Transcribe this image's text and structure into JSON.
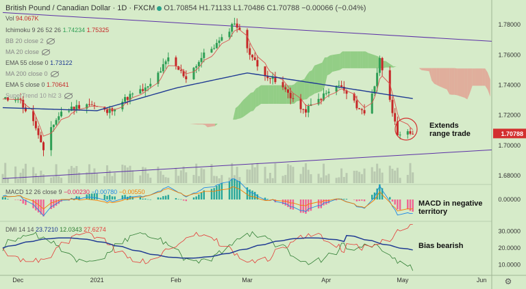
{
  "header": {
    "symbol": "British Pound / Canadian Dollar · 1D · FXCM",
    "ohlc": "O1.70854 H1.71133 L1.70486 C1.70788 −0.00066 (−0.04%)",
    "vol_label": "Vol",
    "vol_value": "94.067K",
    "ichimoku_label": "Ichimoku 9 26 52 26",
    "ichimoku_v1": "1.74234",
    "ichimoku_v2": "1.75325",
    "bb_label": "BB 20 close 2",
    "ma20_label": "MA 20 close",
    "ema55_label": "EMA 55 close 0",
    "ema55_value": "1.73122",
    "ma200_label": "MA 200 close 0",
    "ema5_label": "EMA 5 close 0",
    "ema5_value": "1.70641",
    "supertrend_label": "SuperTrend 10 hl2 3"
  },
  "colors": {
    "background": "#d6ebc9",
    "bull": "#2f9e55",
    "bear": "#c62828",
    "ema55": "#1f3a93",
    "ema5": "#d9534f",
    "cloud_bull": "#7cc46f",
    "cloud_bear": "#e39a8c",
    "trendline": "#5a2ea6"
  },
  "price_panel": {
    "y_ticks": [
      "1.78000",
      "1.76000",
      "1.74000",
      "1.72000",
      "1.70000",
      "1.68000"
    ],
    "current_price": "1.70788",
    "annotation_line1": "Extends",
    "annotation_line2": "range trade"
  },
  "macd_panel": {
    "label": "MACD 12 26 close 9",
    "v1": "−0.00230",
    "v2": "−0.00780",
    "v3": "−0.00550",
    "y_tick": "0.00000",
    "annotation_line1": "MACD in negative",
    "annotation_line2": "territory"
  },
  "dmi_panel": {
    "label": "DMI 14 14",
    "v1": "23.7210",
    "v2": "12.0343",
    "v3": "27.6274",
    "y_ticks": [
      "30.0000",
      "20.0000",
      "10.0000"
    ],
    "annotation": "Bias bearish"
  },
  "x_axis": {
    "labels": [
      "Dec",
      "2021",
      "Feb",
      "Mar",
      "Apr",
      "May",
      "Jun"
    ]
  },
  "chart_data": [
    {
      "type": "candlestick",
      "x_range": [
        "2020-11-25",
        "2021-05-05"
      ],
      "ylim": [
        1.675,
        1.79
      ],
      "y_ticks": [
        1.78,
        1.76,
        1.74,
        1.72,
        1.7,
        1.68
      ],
      "close_path": [
        {
          "date": "2020-11-25",
          "value": 1.73
        },
        {
          "date": "2020-12-01",
          "value": 1.732
        },
        {
          "date": "2020-12-08",
          "value": 1.712
        },
        {
          "date": "2020-12-11",
          "value": 1.695
        },
        {
          "date": "2020-12-14",
          "value": 1.712
        },
        {
          "date": "2020-12-18",
          "value": 1.722
        },
        {
          "date": "2020-12-28",
          "value": 1.728
        },
        {
          "date": "2021-01-05",
          "value": 1.722
        },
        {
          "date": "2021-01-14",
          "value": 1.733
        },
        {
          "date": "2021-01-21",
          "value": 1.738
        },
        {
          "date": "2021-01-29",
          "value": 1.757
        },
        {
          "date": "2021-02-05",
          "value": 1.745
        },
        {
          "date": "2021-02-12",
          "value": 1.76
        },
        {
          "date": "2021-02-19",
          "value": 1.77
        },
        {
          "date": "2021-02-24",
          "value": 1.782
        },
        {
          "date": "2021-03-01",
          "value": 1.765
        },
        {
          "date": "2021-03-05",
          "value": 1.752
        },
        {
          "date": "2021-03-12",
          "value": 1.742
        },
        {
          "date": "2021-03-17",
          "value": 1.735
        },
        {
          "date": "2021-03-23",
          "value": 1.722
        },
        {
          "date": "2021-03-31",
          "value": 1.733
        },
        {
          "date": "2021-04-06",
          "value": 1.74
        },
        {
          "date": "2021-04-12",
          "value": 1.728
        },
        {
          "date": "2021-04-16",
          "value": 1.721
        },
        {
          "date": "2021-04-20",
          "value": 1.74
        },
        {
          "date": "2021-04-22",
          "value": 1.757
        },
        {
          "date": "2021-04-26",
          "value": 1.732
        },
        {
          "date": "2021-04-29",
          "value": 1.705
        },
        {
          "date": "2021-05-03",
          "value": 1.708
        },
        {
          "date": "2021-05-05",
          "value": 1.708
        }
      ],
      "ema55": [
        {
          "date": "2020-11-25",
          "value": 1.725
        },
        {
          "date": "2021-01-01",
          "value": 1.723
        },
        {
          "date": "2021-02-01",
          "value": 1.738
        },
        {
          "date": "2021-03-01",
          "value": 1.748
        },
        {
          "date": "2021-04-01",
          "value": 1.74
        },
        {
          "date": "2021-05-05",
          "value": 1.731
        }
      ],
      "trendlines": [
        {
          "from": {
            "date": "2020-11-25",
            "value": 1.788
          },
          "to": {
            "date": "2021-06-05",
            "value": 1.769
          }
        },
        {
          "from": {
            "date": "2020-11-25",
            "value": 1.678
          },
          "to": {
            "date": "2021-06-05",
            "value": 1.697
          }
        }
      ]
    },
    {
      "type": "line",
      "name": "MACD 12 26 close 9",
      "ylim": [
        -0.012,
        0.008
      ],
      "last_values": [
        -0.0023,
        -0.0078,
        -0.0055
      ]
    },
    {
      "type": "line",
      "name": "DMI 14 14",
      "ylim": [
        5,
        35
      ],
      "y_ticks": [
        30,
        20,
        10
      ],
      "last_values": [
        23.721,
        12.0343,
        27.6274
      ]
    }
  ]
}
